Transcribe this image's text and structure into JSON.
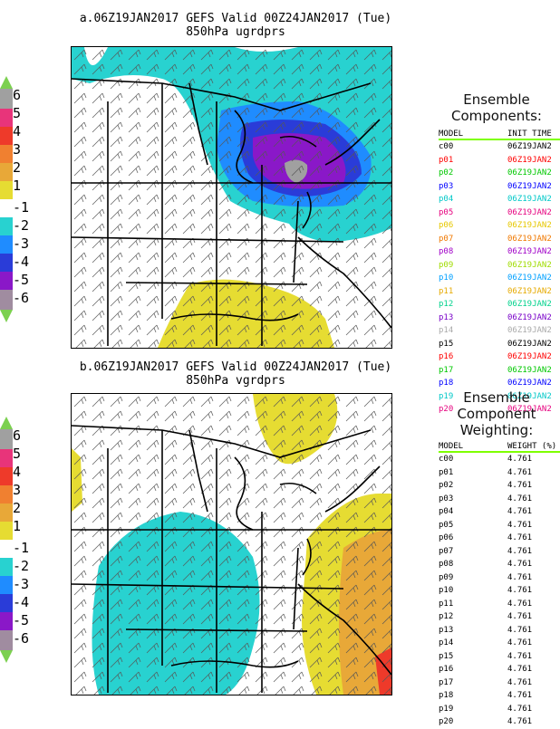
{
  "panel_a": {
    "title_line1": "a.06Z19JAN2017  GEFS  Valid  00Z24JAN2017 (Tue)",
    "title_line2": "850hPa ugrdprs"
  },
  "panel_b": {
    "title_line1": "b.06Z19JAN2017  GEFS  Valid  00Z24JAN2017 (Tue)",
    "title_line2": "850hPa vgrdprs"
  },
  "colorbar": {
    "labels": [
      "6",
      "5",
      "4",
      "3",
      "2",
      "1",
      "-1",
      "-2",
      "-3",
      "-4",
      "-5",
      "-6"
    ],
    "colors": [
      "#a0a0a0",
      "#e8347a",
      "#ee3a2a",
      "#f08030",
      "#e8a838",
      "#e6dc32",
      "#ffffff",
      "#28d2d0",
      "#1f8cff",
      "#2a3cd8",
      "#8a18c8",
      "#a08ca0",
      "#7cd050"
    ]
  },
  "components": {
    "heading_line1": "Ensemble",
    "heading_line2": "Components:",
    "col_model": "MODEL",
    "col_init": "INIT TIME",
    "rows": [
      {
        "model": "c00",
        "time": "06Z19JAN2",
        "color": "#000000"
      },
      {
        "model": "p01",
        "time": "06Z19JAN2",
        "color": "#ff0000"
      },
      {
        "model": "p02",
        "time": "06Z19JAN2",
        "color": "#00c800"
      },
      {
        "model": "p03",
        "time": "06Z19JAN2",
        "color": "#0000ff"
      },
      {
        "model": "p04",
        "time": "06Z19JAN2",
        "color": "#00c8c8"
      },
      {
        "model": "p05",
        "time": "06Z19JAN2",
        "color": "#e6007e"
      },
      {
        "model": "p06",
        "time": "06Z19JAN2",
        "color": "#e6c800"
      },
      {
        "model": "p07",
        "time": "06Z19JAN2",
        "color": "#f07800"
      },
      {
        "model": "p08",
        "time": "06Z19JAN2",
        "color": "#a000c8"
      },
      {
        "model": "p09",
        "time": "06Z19JAN2",
        "color": "#a0dc00"
      },
      {
        "model": "p10",
        "time": "06Z19JAN2",
        "color": "#00a0ff"
      },
      {
        "model": "p11",
        "time": "06Z19JAN2",
        "color": "#e6aa00"
      },
      {
        "model": "p12",
        "time": "06Z19JAN2",
        "color": "#00d28c"
      },
      {
        "model": "p13",
        "time": "06Z19JAN2",
        "color": "#7800c8"
      },
      {
        "model": "p14",
        "time": "06Z19JAN2",
        "color": "#aaaaaa"
      },
      {
        "model": "p15",
        "time": "06Z19JAN2",
        "color": "#000000"
      },
      {
        "model": "p16",
        "time": "06Z19JAN2",
        "color": "#ff0000"
      },
      {
        "model": "p17",
        "time": "06Z19JAN2",
        "color": "#00c800"
      },
      {
        "model": "p18",
        "time": "06Z19JAN2",
        "color": "#0000ff"
      },
      {
        "model": "p19",
        "time": "06Z19JAN2",
        "color": "#00c8c8"
      },
      {
        "model": "p20",
        "time": "06Z19JAN2",
        "color": "#e6007e"
      }
    ]
  },
  "weighting": {
    "heading_line1": "Ensemble",
    "heading_line2": "Component",
    "heading_line3": "Weighting:",
    "col_model": "MODEL",
    "col_weight": "WEIGHT (%)",
    "rows": [
      {
        "model": "c00",
        "weight": "4.761"
      },
      {
        "model": "p01",
        "weight": "4.761"
      },
      {
        "model": "p02",
        "weight": "4.761"
      },
      {
        "model": "p03",
        "weight": "4.761"
      },
      {
        "model": "p04",
        "weight": "4.761"
      },
      {
        "model": "p05",
        "weight": "4.761"
      },
      {
        "model": "p06",
        "weight": "4.761"
      },
      {
        "model": "p07",
        "weight": "4.761"
      },
      {
        "model": "p08",
        "weight": "4.761"
      },
      {
        "model": "p09",
        "weight": "4.761"
      },
      {
        "model": "p10",
        "weight": "4.761"
      },
      {
        "model": "p11",
        "weight": "4.761"
      },
      {
        "model": "p12",
        "weight": "4.761"
      },
      {
        "model": "p13",
        "weight": "4.761"
      },
      {
        "model": "p14",
        "weight": "4.761"
      },
      {
        "model": "p15",
        "weight": "4.761"
      },
      {
        "model": "p16",
        "weight": "4.761"
      },
      {
        "model": "p17",
        "weight": "4.761"
      },
      {
        "model": "p18",
        "weight": "4.761"
      },
      {
        "model": "p19",
        "weight": "4.761"
      },
      {
        "model": "p20",
        "weight": "4.761"
      }
    ]
  }
}
